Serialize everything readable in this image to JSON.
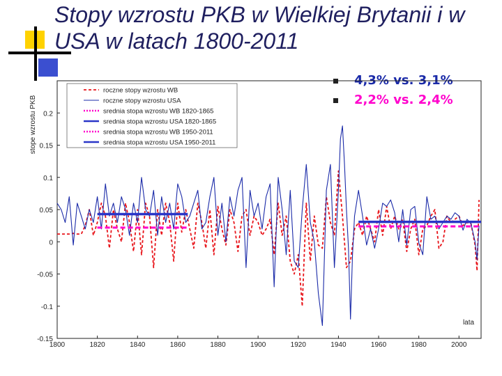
{
  "slide": {
    "title": "Stopy wzrostu PKB w Wielkiej Brytanii i w USA w latach 1800-2011",
    "bullets": [
      {
        "text": "4,3% vs. 3,1%",
        "color": "#1a2aa8"
      },
      {
        "text": "2,2% vs. 2,4%",
        "color": "#ff00cc"
      }
    ],
    "accent_colors": {
      "yellow": "#ffd200",
      "blue": "#3b4fd0"
    }
  },
  "chart_data": {
    "type": "line",
    "ylabel": "stope wzrostu PKB",
    "xlabel": "lata",
    "xlim": [
      1800,
      2011
    ],
    "ylim": [
      -0.15,
      0.25
    ],
    "x_ticks": [
      1800,
      1820,
      1840,
      1860,
      1880,
      1900,
      1920,
      1940,
      1960,
      1980,
      2000
    ],
    "y_ticks": [
      -0.15,
      -0.1,
      -0.05,
      0,
      0.05,
      0.1,
      0.15,
      0.2
    ],
    "y_tick_labels": [
      "-0.15",
      "-0.1",
      "-0.05",
      "0",
      "0.05",
      "0.1",
      "0.15",
      "0.2"
    ],
    "legend_position": "top-left",
    "grid": false,
    "series": [
      {
        "name": "roczne stopy wzrostu WB",
        "color": "#e8141a",
        "style": "dashed",
        "x": [
          1800,
          1802,
          1804,
          1806,
          1808,
          1810,
          1812,
          1814,
          1816,
          1818,
          1820,
          1822,
          1824,
          1826,
          1828,
          1830,
          1832,
          1834,
          1836,
          1838,
          1840,
          1842,
          1844,
          1846,
          1848,
          1850,
          1852,
          1854,
          1856,
          1858,
          1860,
          1862,
          1864,
          1866,
          1868,
          1870,
          1872,
          1874,
          1876,
          1878,
          1880,
          1882,
          1884,
          1886,
          1888,
          1890,
          1892,
          1894,
          1896,
          1898,
          1900,
          1902,
          1904,
          1906,
          1908,
          1910,
          1912,
          1914,
          1916,
          1918,
          1920,
          1922,
          1924,
          1926,
          1928,
          1930,
          1932,
          1934,
          1936,
          1938,
          1940,
          1942,
          1944,
          1946,
          1948,
          1950,
          1952,
          1954,
          1956,
          1958,
          1960,
          1962,
          1964,
          1966,
          1968,
          1970,
          1972,
          1974,
          1976,
          1978,
          1980,
          1982,
          1984,
          1986,
          1988,
          1990,
          1992,
          1994,
          1996,
          1998,
          2000,
          2002,
          2004,
          2006,
          2008,
          2009,
          2010
        ],
        "y": [
          0.012,
          0.012,
          0.012,
          0.012,
          0.013,
          0.012,
          0.012,
          0.025,
          0.05,
          0.01,
          0.03,
          0.06,
          0.04,
          -0.01,
          0.05,
          0.02,
          0.0,
          0.06,
          0.03,
          -0.015,
          0.05,
          -0.02,
          0.06,
          0.04,
          -0.04,
          0.05,
          0.01,
          0.06,
          0.03,
          -0.03,
          0.06,
          0.015,
          0.05,
          0.02,
          -0.01,
          0.06,
          0.03,
          -0.01,
          0.05,
          -0.02,
          0.055,
          0.02,
          -0.005,
          0.05,
          0.03,
          -0.015,
          0.04,
          0.05,
          0.01,
          0.04,
          0.03,
          0.01,
          0.02,
          0.035,
          -0.02,
          0.06,
          0.01,
          0.04,
          -0.03,
          -0.05,
          -0.02,
          -0.1,
          0.06,
          -0.03,
          0.04,
          -0.005,
          -0.01,
          0.07,
          0.03,
          0.01,
          0.11,
          0.04,
          -0.04,
          -0.03,
          0.02,
          0.03,
          0.01,
          0.04,
          0.02,
          0.0,
          0.05,
          0.01,
          0.055,
          0.02,
          0.04,
          0.02,
          0.035,
          -0.015,
          0.02,
          0.035,
          -0.02,
          0.02,
          0.025,
          0.04,
          0.05,
          -0.01,
          0.0,
          0.04,
          0.03,
          0.035,
          0.04,
          0.025,
          0.03,
          0.028,
          -0.005,
          -0.045,
          0.065
        ]
      },
      {
        "name": "roczne stopy wzrostu USA",
        "color": "#1a2aa8",
        "style": "solid",
        "x": [
          1800,
          1802,
          1804,
          1806,
          1808,
          1810,
          1812,
          1814,
          1816,
          1818,
          1820,
          1822,
          1824,
          1826,
          1828,
          1830,
          1832,
          1834,
          1836,
          1838,
          1840,
          1842,
          1844,
          1846,
          1848,
          1850,
          1852,
          1854,
          1856,
          1858,
          1860,
          1862,
          1864,
          1866,
          1868,
          1870,
          1872,
          1874,
          1876,
          1878,
          1880,
          1882,
          1884,
          1886,
          1888,
          1890,
          1892,
          1894,
          1896,
          1898,
          1900,
          1902,
          1904,
          1906,
          1908,
          1910,
          1912,
          1914,
          1916,
          1918,
          1920,
          1922,
          1924,
          1926,
          1928,
          1930,
          1932,
          1934,
          1936,
          1938,
          1940,
          1941,
          1942,
          1943,
          1944,
          1945,
          1946,
          1947,
          1948,
          1950,
          1952,
          1954,
          1956,
          1958,
          1960,
          1962,
          1964,
          1966,
          1968,
          1970,
          1972,
          1974,
          1976,
          1978,
          1980,
          1982,
          1984,
          1986,
          1988,
          1990,
          1992,
          1994,
          1996,
          1998,
          2000,
          2002,
          2004,
          2006,
          2008,
          2009,
          2010
        ],
        "y": [
          0.06,
          0.05,
          0.03,
          0.07,
          -0.005,
          0.06,
          0.04,
          0.02,
          0.05,
          0.03,
          0.07,
          0.02,
          0.09,
          0.04,
          0.06,
          0.03,
          0.07,
          0.05,
          0.01,
          0.06,
          0.03,
          0.1,
          0.05,
          0.04,
          0.08,
          0.01,
          0.07,
          0.03,
          0.06,
          0.02,
          0.09,
          0.07,
          0.03,
          0.04,
          0.06,
          0.08,
          0.02,
          0.03,
          0.07,
          0.1,
          0.01,
          0.06,
          0.0,
          0.07,
          0.04,
          0.08,
          0.1,
          -0.04,
          0.08,
          0.04,
          0.06,
          0.02,
          0.07,
          0.09,
          -0.07,
          0.1,
          0.05,
          -0.02,
          0.08,
          -0.03,
          -0.04,
          0.05,
          0.12,
          0.03,
          0.0,
          -0.08,
          -0.13,
          0.08,
          0.12,
          -0.04,
          0.08,
          0.16,
          0.18,
          0.12,
          0.05,
          -0.01,
          -0.12,
          -0.02,
          0.04,
          0.08,
          0.04,
          -0.005,
          0.02,
          -0.01,
          0.02,
          0.06,
          0.055,
          0.065,
          0.045,
          0.0,
          0.05,
          -0.005,
          0.05,
          0.055,
          -0.002,
          -0.02,
          0.07,
          0.035,
          0.04,
          0.02,
          0.03,
          0.04,
          0.035,
          0.045,
          0.04,
          0.018,
          0.035,
          0.028,
          0.0,
          -0.028,
          0.025
        ]
      },
      {
        "name": "srednia stopa wzrostu WB 1820-1865",
        "color": "#ff00cc",
        "style": "dashed",
        "x": [
          1820,
          1865
        ],
        "y": [
          0.022,
          0.022
        ]
      },
      {
        "name": "srednia stopa wzrostu USA 1820-1865",
        "color": "#2a36c8",
        "style": "solid",
        "x": [
          1820,
          1865
        ],
        "y": [
          0.043,
          0.043
        ]
      },
      {
        "name": "srednia stopa wzrostu WB 1950-2011",
        "color": "#ff00cc",
        "style": "dashed",
        "x": [
          1950,
          2011
        ],
        "y": [
          0.024,
          0.024
        ]
      },
      {
        "name": "srednia stopa wzrostu USA 1950-2011",
        "color": "#2a36c8",
        "style": "solid",
        "x": [
          1950,
          2011
        ],
        "y": [
          0.031,
          0.031
        ]
      }
    ]
  }
}
